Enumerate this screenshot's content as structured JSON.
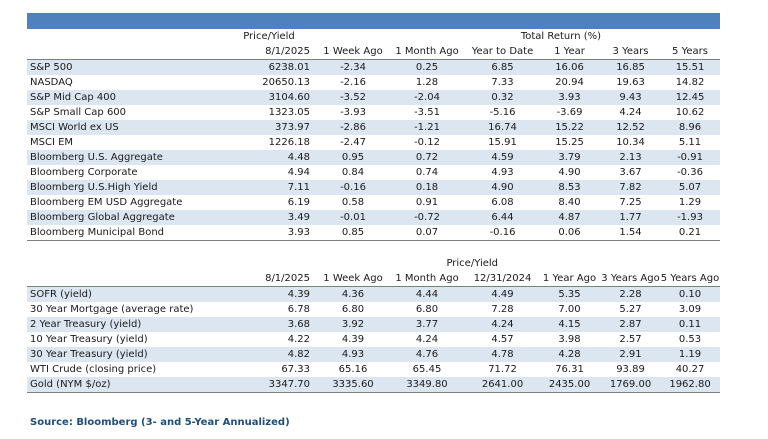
{
  "colors": {
    "header_bar": "#4f81bd",
    "row_shade": "#dce6f1",
    "source_text": "#1f4e79"
  },
  "table1": {
    "group_headers": {
      "price_yield": "Price/Yield",
      "total_return": "Total Return (%)"
    },
    "columns": [
      "8/1/2025",
      "1 Week Ago",
      "1 Month Ago",
      "Year to Date",
      "1 Year",
      "3 Years",
      "5 Years"
    ],
    "rows": [
      {
        "name": "S&P 500",
        "values": [
          "6238.01",
          "-2.34",
          "0.25",
          "6.85",
          "16.06",
          "16.85",
          "15.51"
        ]
      },
      {
        "name": "NASDAQ",
        "values": [
          "20650.13",
          "-2.16",
          "1.28",
          "7.33",
          "20.94",
          "19.63",
          "14.82"
        ]
      },
      {
        "name": "S&P Mid Cap 400",
        "values": [
          "3104.60",
          "-3.52",
          "-2.04",
          "0.32",
          "3.93",
          "9.43",
          "12.45"
        ]
      },
      {
        "name": "S&P Small Cap 600",
        "values": [
          "1323.05",
          "-3.93",
          "-3.51",
          "-5.16",
          "-3.69",
          "4.24",
          "10.62"
        ]
      },
      {
        "name": "MSCI World ex US",
        "values": [
          "373.97",
          "-2.86",
          "-1.21",
          "16.74",
          "15.22",
          "12.52",
          "8.96"
        ]
      },
      {
        "name": "MSCI EM",
        "values": [
          "1226.18",
          "-2.47",
          "-0.12",
          "15.91",
          "15.25",
          "10.34",
          "5.11"
        ]
      },
      {
        "name": "Bloomberg U.S. Aggregate",
        "values": [
          "4.48",
          "0.95",
          "0.72",
          "4.59",
          "3.79",
          "2.13",
          "-0.91"
        ]
      },
      {
        "name": "Bloomberg Corporate",
        "values": [
          "4.94",
          "0.84",
          "0.74",
          "4.93",
          "4.90",
          "3.67",
          "-0.36"
        ]
      },
      {
        "name": "Bloomberg U.S.High Yield",
        "values": [
          "7.11",
          "-0.16",
          "0.18",
          "4.90",
          "8.53",
          "7.82",
          "5.07"
        ]
      },
      {
        "name": "Bloomberg EM USD Aggregate",
        "values": [
          "6.19",
          "0.58",
          "0.91",
          "6.08",
          "8.40",
          "7.25",
          "1.29"
        ]
      },
      {
        "name": "Bloomberg Global Aggregate",
        "values": [
          "3.49",
          "-0.01",
          "-0.72",
          "6.44",
          "4.87",
          "1.77",
          "-1.93"
        ]
      },
      {
        "name": "Bloomberg Municipal Bond",
        "values": [
          "3.93",
          "0.85",
          "0.07",
          "-0.16",
          "0.06",
          "1.54",
          "0.21"
        ]
      }
    ]
  },
  "table2": {
    "group_header": "Price/Yield",
    "columns": [
      "8/1/2025",
      "1 Week Ago",
      "1 Month Ago",
      "12/31/2024",
      "1 Year Ago",
      "3 Years Ago",
      "5 Years Ago"
    ],
    "rows": [
      {
        "name": "SOFR (yield)",
        "values": [
          "4.39",
          "4.36",
          "4.44",
          "4.49",
          "5.35",
          "2.28",
          "0.10"
        ]
      },
      {
        "name": "30 Year Mortgage (average rate)",
        "values": [
          "6.78",
          "6.80",
          "6.80",
          "7.28",
          "7.00",
          "5.27",
          "3.09"
        ]
      },
      {
        "name": "2 Year Treasury (yield)",
        "values": [
          "3.68",
          "3.92",
          "3.77",
          "4.24",
          "4.15",
          "2.87",
          "0.11"
        ]
      },
      {
        "name": "10 Year Treasury (yield)",
        "values": [
          "4.22",
          "4.39",
          "4.24",
          "4.57",
          "3.98",
          "2.57",
          "0.53"
        ]
      },
      {
        "name": "30 Year Treasury (yield)",
        "values": [
          "4.82",
          "4.93",
          "4.76",
          "4.78",
          "4.28",
          "2.91",
          "1.19"
        ]
      },
      {
        "name": "WTI Crude (closing price)",
        "values": [
          "67.33",
          "65.16",
          "65.45",
          "71.72",
          "76.31",
          "93.89",
          "40.27"
        ]
      },
      {
        "name": "Gold (NYM $/oz)",
        "values": [
          "3347.70",
          "3335.60",
          "3349.80",
          "2641.00",
          "2435.00",
          "1769.00",
          "1962.80"
        ]
      }
    ]
  },
  "source": "Source: Bloomberg (3- and 5-Year Annualized)"
}
